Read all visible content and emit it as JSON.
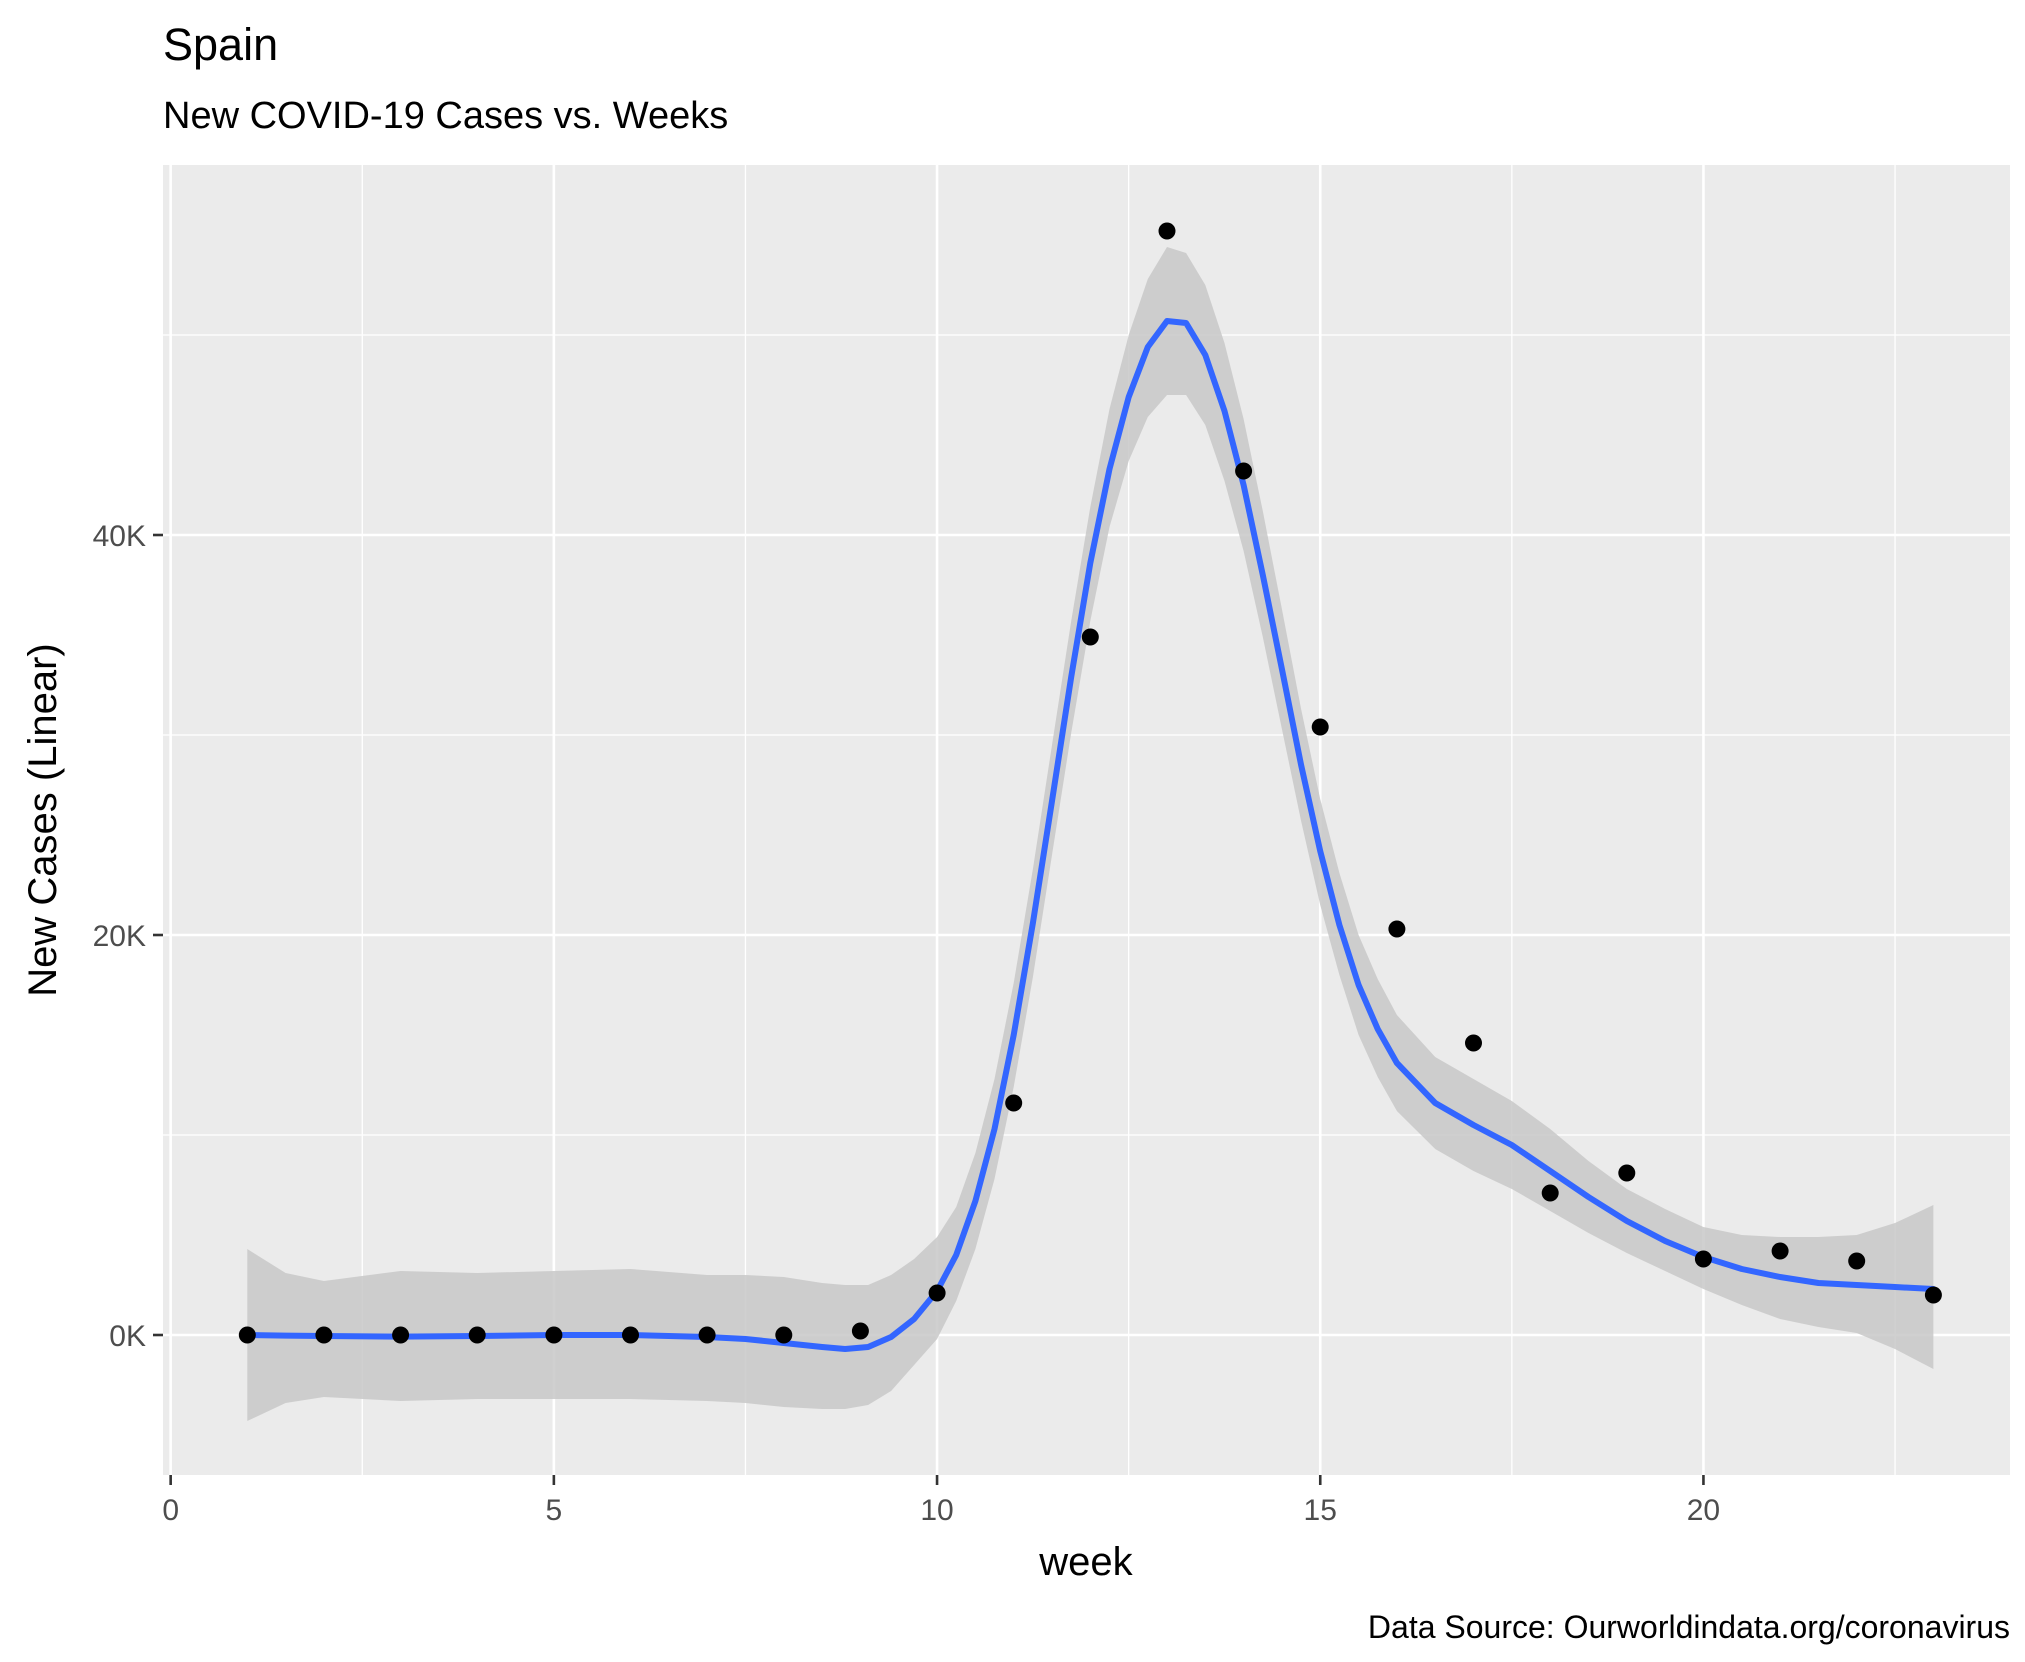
{
  "chart_data": {
    "type": "scatter",
    "title": "Spain",
    "subtitle": "New COVID-19 Cases vs. Weeks",
    "xlabel": "week",
    "ylabel": "New Cases (Linear)",
    "caption": "Data Source: Ourworldindata.org/coronavirus",
    "xlim": [
      -0.1,
      24.0
    ],
    "ylim": [
      -7000,
      58500
    ],
    "x_ticks": [
      0,
      5,
      10,
      15,
      20
    ],
    "y_ticks": [
      0,
      20000,
      40000
    ],
    "y_tick_labels": [
      "0K",
      "20K",
      "40K"
    ],
    "grid": true,
    "panel_color": "#ebebeb",
    "grid_color": "#ffffff",
    "point_color": "#000000",
    "smooth_color": "#3366ff",
    "band_color": "#c8c8c8",
    "series": [
      {
        "points": [
          {
            "x": 1,
            "y": 0
          },
          {
            "x": 2,
            "y": 0
          },
          {
            "x": 3,
            "y": 0
          },
          {
            "x": 4,
            "y": 0
          },
          {
            "x": 5,
            "y": 0
          },
          {
            "x": 6,
            "y": 0
          },
          {
            "x": 7,
            "y": 0
          },
          {
            "x": 8,
            "y": 0
          },
          {
            "x": 9,
            "y": 200
          },
          {
            "x": 10,
            "y": 2100
          },
          {
            "x": 11,
            "y": 11600
          },
          {
            "x": 12,
            "y": 34900
          },
          {
            "x": 13,
            "y": 55200
          },
          {
            "x": 14,
            "y": 43200
          },
          {
            "x": 15,
            "y": 30400
          },
          {
            "x": 16,
            "y": 20300
          },
          {
            "x": 17,
            "y": 14600
          },
          {
            "x": 18,
            "y": 7100
          },
          {
            "x": 19,
            "y": 8100
          },
          {
            "x": 20,
            "y": 3800
          },
          {
            "x": 21,
            "y": 4200
          },
          {
            "x": 22,
            "y": 3700
          },
          {
            "x": 23,
            "y": 2000
          }
        ]
      }
    ],
    "smooth_fit": [
      {
        "x": 1.0,
        "y": 0,
        "lo": -4300,
        "hi": 4300
      },
      {
        "x": 1.5,
        "y": -30,
        "lo": -3400,
        "hi": 3100
      },
      {
        "x": 2.0,
        "y": -50,
        "lo": -3100,
        "hi": 2700
      },
      {
        "x": 3.0,
        "y": -80,
        "lo": -3300,
        "hi": 3200
      },
      {
        "x": 4.0,
        "y": -50,
        "lo": -3200,
        "hi": 3100
      },
      {
        "x": 5.0,
        "y": 0,
        "lo": -3200,
        "hi": 3200
      },
      {
        "x": 6.0,
        "y": 0,
        "lo": -3200,
        "hi": 3300
      },
      {
        "x": 7.0,
        "y": -100,
        "lo": -3300,
        "hi": 3000
      },
      {
        "x": 7.5,
        "y": -200,
        "lo": -3400,
        "hi": 3000
      },
      {
        "x": 8.0,
        "y": -400,
        "lo": -3600,
        "hi": 2900
      },
      {
        "x": 8.5,
        "y": -600,
        "lo": -3700,
        "hi": 2600
      },
      {
        "x": 8.8,
        "y": -700,
        "lo": -3700,
        "hi": 2500
      },
      {
        "x": 9.1,
        "y": -600,
        "lo": -3500,
        "hi": 2500
      },
      {
        "x": 9.4,
        "y": -100,
        "lo": -2800,
        "hi": 3000
      },
      {
        "x": 9.7,
        "y": 800,
        "lo": -1500,
        "hi": 3800
      },
      {
        "x": 10.0,
        "y": 2200,
        "lo": -200,
        "hi": 4900
      },
      {
        "x": 10.25,
        "y": 4000,
        "lo": 1700,
        "hi": 6400
      },
      {
        "x": 10.5,
        "y": 6700,
        "lo": 4300,
        "hi": 9100
      },
      {
        "x": 10.75,
        "y": 10300,
        "lo": 7800,
        "hi": 12800
      },
      {
        "x": 11.0,
        "y": 15000,
        "lo": 12400,
        "hi": 17600
      },
      {
        "x": 11.25,
        "y": 20600,
        "lo": 17900,
        "hi": 23300
      },
      {
        "x": 11.5,
        "y": 26700,
        "lo": 24000,
        "hi": 29500
      },
      {
        "x": 11.75,
        "y": 32900,
        "lo": 30100,
        "hi": 35700
      },
      {
        "x": 12.0,
        "y": 38600,
        "lo": 35700,
        "hi": 41400
      },
      {
        "x": 12.25,
        "y": 43300,
        "lo": 40400,
        "hi": 46300
      },
      {
        "x": 12.5,
        "y": 46900,
        "lo": 43700,
        "hi": 50000
      },
      {
        "x": 12.75,
        "y": 49400,
        "lo": 45900,
        "hi": 52800
      },
      {
        "x": 13.0,
        "y": 50700,
        "lo": 47000,
        "hi": 54400
      },
      {
        "x": 13.25,
        "y": 50600,
        "lo": 47000,
        "hi": 54100
      },
      {
        "x": 13.5,
        "y": 49000,
        "lo": 45500,
        "hi": 52500
      },
      {
        "x": 13.75,
        "y": 46200,
        "lo": 42700,
        "hi": 49600
      },
      {
        "x": 14.0,
        "y": 42500,
        "lo": 39200,
        "hi": 45800
      },
      {
        "x": 14.25,
        "y": 38000,
        "lo": 34900,
        "hi": 41200
      },
      {
        "x": 14.5,
        "y": 33300,
        "lo": 30300,
        "hi": 36300
      },
      {
        "x": 14.75,
        "y": 28500,
        "lo": 25700,
        "hi": 31300
      },
      {
        "x": 15.0,
        "y": 24200,
        "lo": 21500,
        "hi": 26800
      },
      {
        "x": 15.25,
        "y": 20500,
        "lo": 18000,
        "hi": 23100
      },
      {
        "x": 15.5,
        "y": 17500,
        "lo": 15000,
        "hi": 20000
      },
      {
        "x": 15.75,
        "y": 15300,
        "lo": 12900,
        "hi": 17800
      },
      {
        "x": 16.0,
        "y": 13600,
        "lo": 11200,
        "hi": 16000
      },
      {
        "x": 16.5,
        "y": 11600,
        "lo": 9300,
        "hi": 13900
      },
      {
        "x": 17.0,
        "y": 10500,
        "lo": 8200,
        "hi": 12800
      },
      {
        "x": 17.5,
        "y": 9500,
        "lo": 7300,
        "hi": 11700
      },
      {
        "x": 18.0,
        "y": 8200,
        "lo": 6200,
        "hi": 10300
      },
      {
        "x": 18.5,
        "y": 6900,
        "lo": 5100,
        "hi": 8700
      },
      {
        "x": 19.0,
        "y": 5700,
        "lo": 4100,
        "hi": 7300
      },
      {
        "x": 19.5,
        "y": 4700,
        "lo": 3200,
        "hi": 6300
      },
      {
        "x": 20.0,
        "y": 3900,
        "lo": 2300,
        "hi": 5400
      },
      {
        "x": 20.5,
        "y": 3300,
        "lo": 1500,
        "hi": 5000
      },
      {
        "x": 21.0,
        "y": 2900,
        "lo": 800,
        "hi": 4900
      },
      {
        "x": 21.5,
        "y": 2600,
        "lo": 400,
        "hi": 4900
      },
      {
        "x": 22.0,
        "y": 2500,
        "lo": 100,
        "hi": 5000
      },
      {
        "x": 22.5,
        "y": 2400,
        "lo": -700,
        "hi": 5600
      },
      {
        "x": 23.0,
        "y": 2300,
        "lo": -1700,
        "hi": 6500
      }
    ]
  }
}
